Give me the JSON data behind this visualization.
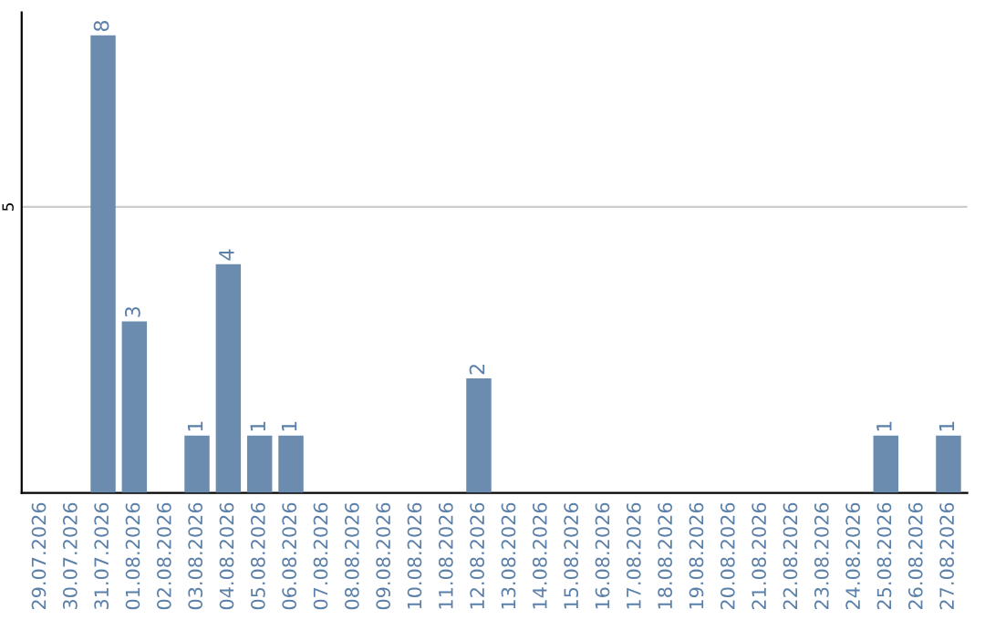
{
  "chart_data": {
    "type": "bar",
    "categories": [
      "29.07.2026",
      "30.07.2026",
      "31.07.2026",
      "01.08.2026",
      "02.08.2026",
      "03.08.2026",
      "04.08.2026",
      "05.08.2026",
      "06.08.2026",
      "07.08.2026",
      "08.08.2026",
      "09.08.2026",
      "10.08.2026",
      "11.08.2026",
      "12.08.2026",
      "13.08.2026",
      "14.08.2026",
      "15.08.2026",
      "16.08.2026",
      "17.08.2026",
      "18.08.2026",
      "19.08.2026",
      "20.08.2026",
      "21.08.2026",
      "22.08.2026",
      "23.08.2026",
      "24.08.2026",
      "25.08.2026",
      "26.08.2026",
      "27.08.2026"
    ],
    "values": [
      0,
      0,
      8,
      3,
      0,
      1,
      4,
      1,
      1,
      0,
      0,
      0,
      0,
      0,
      2,
      0,
      0,
      0,
      0,
      0,
      0,
      0,
      0,
      0,
      0,
      0,
      0,
      1,
      0,
      1
    ],
    "value_labels": [
      null,
      null,
      "8",
      "3",
      null,
      "1",
      "4",
      "1",
      "1",
      null,
      null,
      null,
      null,
      null,
      "2",
      null,
      null,
      null,
      null,
      null,
      null,
      null,
      null,
      null,
      null,
      null,
      null,
      "1",
      null,
      "1"
    ],
    "color": "#6b8cae",
    "ylim": [
      0,
      8.4
    ],
    "yticks": [
      5
    ],
    "grid": "y"
  }
}
